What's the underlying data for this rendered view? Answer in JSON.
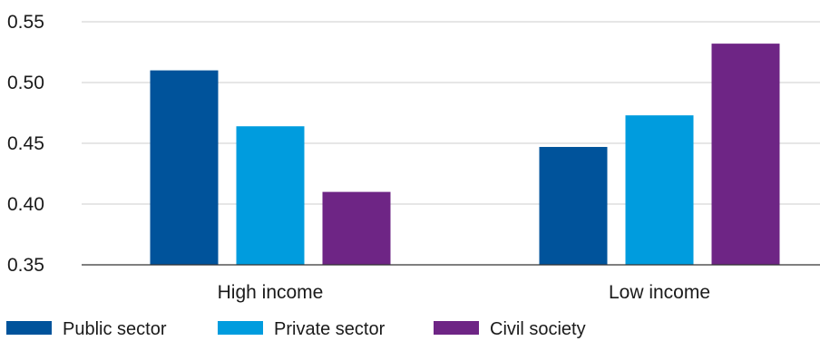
{
  "chart_data": {
    "type": "bar",
    "title": "",
    "xlabel": "",
    "ylabel": "",
    "categories": [
      "High income",
      "Low income"
    ],
    "series": [
      {
        "name": "Public sector",
        "color": "#00539b",
        "values": [
          0.51,
          0.447
        ]
      },
      {
        "name": "Private sector",
        "color": "#009cde",
        "values": [
          0.464,
          0.473
        ]
      },
      {
        "name": "Civil society",
        "color": "#6e2585",
        "values": [
          0.41,
          0.532
        ]
      }
    ],
    "ylim": [
      0.35,
      0.55
    ],
    "yticks": [
      "0.35",
      "0.40",
      "0.45",
      "0.50",
      "0.55"
    ],
    "grid": true,
    "legend_position": "bottom-left",
    "colors": {
      "grid": "#cccccc",
      "axis": "#333333",
      "text": "#1a1a1a"
    }
  }
}
